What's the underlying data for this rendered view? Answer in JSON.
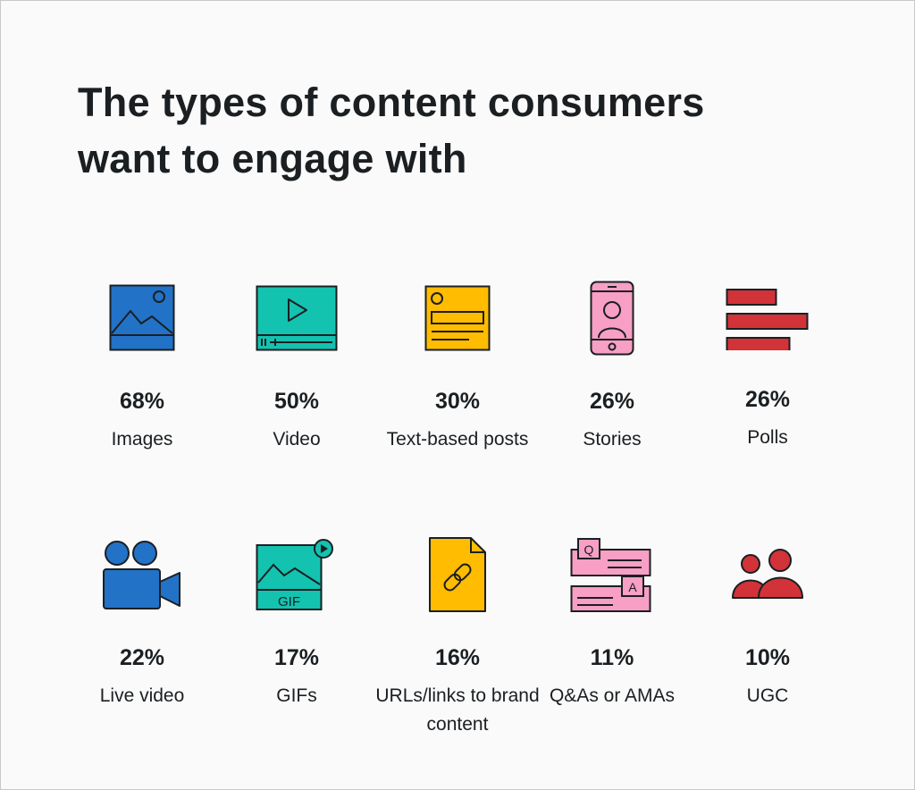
{
  "title": {
    "line1": "The types of content consumers",
    "line2": "want to engage with"
  },
  "items": [
    {
      "percent": "68%",
      "label": "Images",
      "icon": "image-icon",
      "color": "#2272c8"
    },
    {
      "percent": "50%",
      "label": "Video",
      "icon": "video-player-icon",
      "color": "#14c2b0"
    },
    {
      "percent": "30%",
      "label": "Text-based posts",
      "icon": "text-post-icon",
      "color": "#ffbc00"
    },
    {
      "percent": "26%",
      "label": "Stories",
      "icon": "smartphone-story-icon",
      "color": "#f79fc4"
    },
    {
      "percent": "26%",
      "label": "Polls",
      "icon": "poll-bars-icon",
      "color": "#d23338"
    },
    {
      "percent": "22%",
      "label": "Live video",
      "icon": "video-camera-icon",
      "color": "#2272c8"
    },
    {
      "percent": "17%",
      "label": "GIFs",
      "icon": "gif-icon",
      "color": "#14c2b0",
      "icon_text": "GIF"
    },
    {
      "percent": "16%",
      "label": "URLs/links to brand content",
      "icon": "link-document-icon",
      "color": "#ffbc00"
    },
    {
      "percent": "11%",
      "label": "Q&As or AMAs",
      "icon": "qa-chat-icon",
      "color": "#f79fc4",
      "icon_text_q": "Q",
      "icon_text_a": "A"
    },
    {
      "percent": "10%",
      "label": "UGC",
      "icon": "users-icon",
      "color": "#d23338"
    }
  ]
}
